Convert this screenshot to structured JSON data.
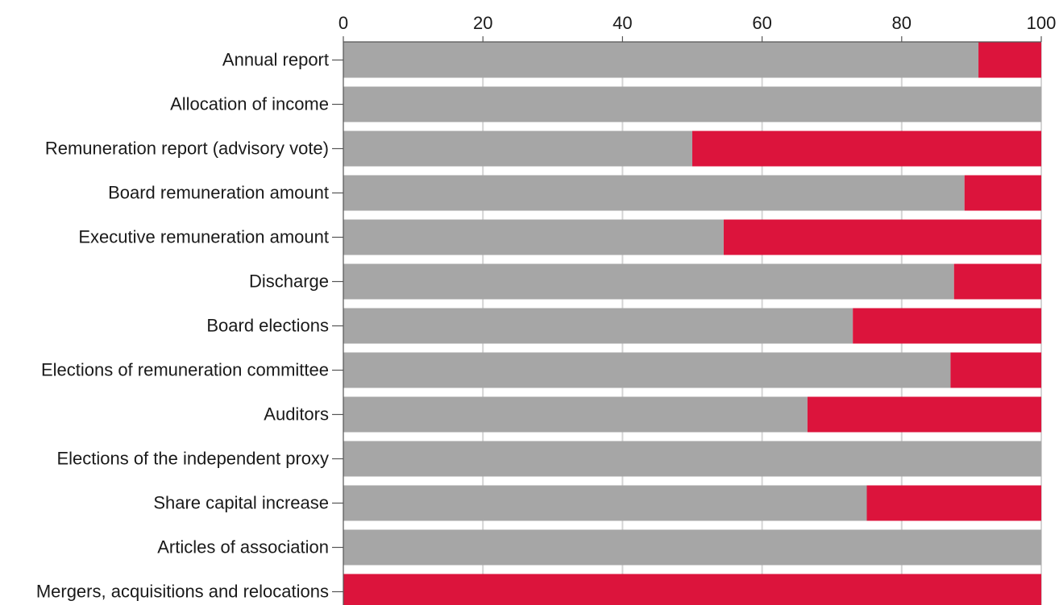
{
  "chart_data": {
    "type": "bar",
    "orientation": "horizontal",
    "stacked": true,
    "title": "",
    "xlabel": "",
    "ylabel": "",
    "xlim": [
      0,
      100
    ],
    "x_ticks": [
      "0",
      "20",
      "40",
      "60",
      "80",
      "100"
    ],
    "x_axis_position": "top",
    "grid": true,
    "categories": [
      "Annual report",
      "Allocation of income",
      "Remuneration report (advisory vote)",
      "Board remuneration amount",
      "Executive remuneration amount",
      "Discharge",
      "Board elections",
      "Elections of remuneration committee",
      "Auditors",
      "Elections of the independent proxy",
      "Share capital increase",
      "Articles of association",
      "Mergers, acquisitions and relocations"
    ],
    "series": [
      {
        "color": "#a6a6a6",
        "values": [
          91,
          100,
          50,
          89,
          54.5,
          87.5,
          73,
          87,
          66.5,
          100,
          75,
          100,
          0
        ]
      },
      {
        "color": "#dc143c",
        "values": [
          9,
          0,
          50,
          11,
          45.5,
          12.5,
          27,
          13,
          33.5,
          0,
          25,
          0,
          100
        ]
      }
    ]
  }
}
